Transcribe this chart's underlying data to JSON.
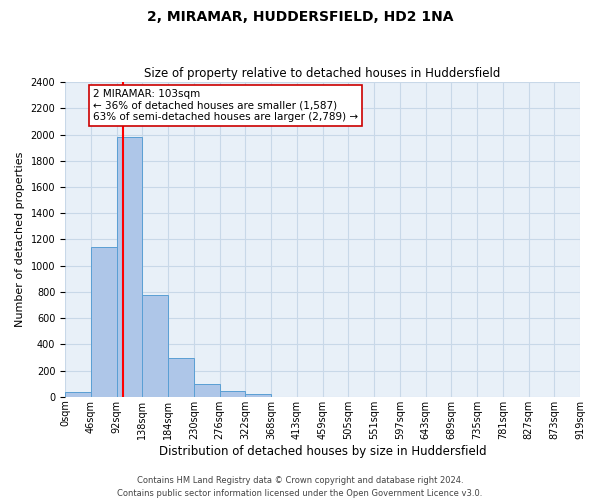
{
  "title": "2, MIRAMAR, HUDDERSFIELD, HD2 1NA",
  "subtitle": "Size of property relative to detached houses in Huddersfield",
  "xlabel": "Distribution of detached houses by size in Huddersfield",
  "ylabel": "Number of detached properties",
  "footer_line1": "Contains HM Land Registry data © Crown copyright and database right 2024.",
  "footer_line2": "Contains public sector information licensed under the Open Government Licence v3.0.",
  "bin_labels": [
    "0sqm",
    "46sqm",
    "92sqm",
    "138sqm",
    "184sqm",
    "230sqm",
    "276sqm",
    "322sqm",
    "368sqm",
    "413sqm",
    "459sqm",
    "505sqm",
    "551sqm",
    "597sqm",
    "643sqm",
    "689sqm",
    "735sqm",
    "781sqm",
    "827sqm",
    "873sqm",
    "919sqm"
  ],
  "bar_values": [
    35,
    1140,
    1980,
    775,
    295,
    100,
    45,
    20,
    0,
    0,
    0,
    0,
    0,
    0,
    0,
    0,
    0,
    0,
    0,
    0
  ],
  "bar_color": "#aec6e8",
  "bar_edge_color": "#5a9fd4",
  "ylim": [
    0,
    2400
  ],
  "yticks": [
    0,
    200,
    400,
    600,
    800,
    1000,
    1200,
    1400,
    1600,
    1800,
    2000,
    2200,
    2400
  ],
  "red_line_x": 103,
  "bin_width": 46,
  "annotation_title": "2 MIRAMAR: 103sqm",
  "annotation_line1": "← 36% of detached houses are smaller (1,587)",
  "annotation_line2": "63% of semi-detached houses are larger (2,789) →",
  "annotation_box_color": "#ffffff",
  "annotation_box_edge_color": "#cc0000",
  "grid_color": "#c8d8e8",
  "background_color": "#e8f0f8",
  "title_fontsize": 10,
  "subtitle_fontsize": 8.5,
  "tick_fontsize": 7,
  "xlabel_fontsize": 8.5,
  "ylabel_fontsize": 8,
  "annotation_fontsize": 7.5,
  "footer_fontsize": 6
}
